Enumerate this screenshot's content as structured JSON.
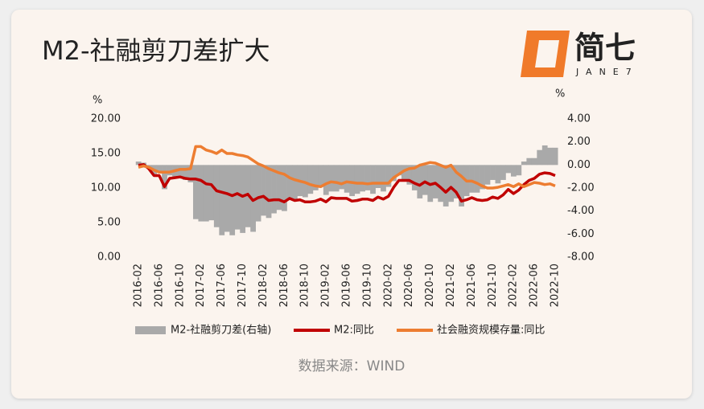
{
  "logo": {
    "name": "简七",
    "sub": "JANE7"
  },
  "chart_data": {
    "type": "combo",
    "title": "M2-社融剪刀差扩大",
    "source": "数据来源：WIND",
    "y_label": "%",
    "y2_label": "%",
    "categories": [
      "2016-02",
      null,
      null,
      null,
      "2016-06",
      null,
      null,
      null,
      "2016-10",
      null,
      null,
      null,
      "2017-02",
      null,
      null,
      null,
      "2017-06",
      null,
      null,
      null,
      "2017-10",
      null,
      null,
      null,
      "2018-02",
      null,
      null,
      null,
      "2018-06",
      null,
      null,
      null,
      "2018-10",
      null,
      null,
      null,
      "2019-02",
      null,
      null,
      null,
      "2019-06",
      null,
      null,
      null,
      "2019-10",
      null,
      null,
      null,
      "2020-02",
      null,
      null,
      null,
      "2020-06",
      null,
      null,
      null,
      "2020-10",
      null,
      null,
      null,
      "2021-02",
      null,
      null,
      null,
      "2021-06",
      null,
      null,
      null,
      "2021-10",
      null,
      null,
      null,
      "2022-02",
      null,
      null,
      null,
      "2022-06",
      null,
      null,
      null,
      "2022-10"
    ],
    "ylim": [
      0,
      20
    ],
    "yticks": [
      {
        "value": 0,
        "label": "0.00"
      },
      {
        "value": 5,
        "label": "5.00"
      },
      {
        "value": 10,
        "label": "10.00"
      },
      {
        "value": 15,
        "label": "15.00"
      },
      {
        "value": 20,
        "label": "20.00"
      }
    ],
    "y2lim": [
      -8,
      4
    ],
    "y2ticks": [
      {
        "value": -8,
        "label": "-8.00"
      },
      {
        "value": -6,
        "label": "-6.00"
      },
      {
        "value": -4,
        "label": "-4.00"
      },
      {
        "value": -2,
        "label": "-2.00"
      },
      {
        "value": 0,
        "label": "0.00"
      },
      {
        "value": 2,
        "label": "2.00"
      },
      {
        "value": 4,
        "label": "4.00"
      }
    ],
    "series": [
      {
        "name": "M2-社融剪刀差(右轴)",
        "type": "area",
        "axis": "y2",
        "color": "#a9a9a9",
        "values": [
          0.3,
          0.2,
          -0.2,
          -0.8,
          -0.5,
          -2.1,
          -0.9,
          -1.0,
          -1.1,
          -1.3,
          -1.5,
          -4.7,
          -4.9,
          -4.9,
          -4.8,
          -5.4,
          -6.1,
          -5.8,
          -6.1,
          -5.6,
          -5.9,
          -5.4,
          -5.8,
          -4.9,
          -4.4,
          -4.6,
          -4.2,
          -3.9,
          -4.0,
          -3.0,
          -3.0,
          -2.7,
          -2.8,
          -2.5,
          -2.2,
          -1.8,
          -2.6,
          -2.3,
          -2.3,
          -2.1,
          -2.4,
          -2.7,
          -2.5,
          -2.3,
          -2.2,
          -2.5,
          -2.0,
          -2.3,
          -1.9,
          -1.4,
          -0.9,
          -1.4,
          -1.7,
          -2.2,
          -2.9,
          -2.6,
          -3.2,
          -2.9,
          -3.2,
          -3.6,
          -3.2,
          -2.9,
          -3.6,
          -2.7,
          -2.4,
          -2.4,
          -2.1,
          -1.7,
          -1.3,
          -1.6,
          -1.3,
          -0.7,
          -1.0,
          -0.9,
          0.3,
          0.6,
          0.6,
          1.3,
          1.7,
          1.5,
          1.5
        ]
      },
      {
        "name": "M2:同比",
        "type": "line",
        "color": "#c00000",
        "values": [
          13.3,
          13.4,
          12.8,
          11.8,
          11.8,
          10.2,
          11.4,
          11.5,
          11.6,
          11.4,
          11.3,
          11.3,
          11.1,
          10.6,
          10.5,
          9.6,
          9.4,
          9.2,
          8.9,
          9.2,
          8.8,
          9.1,
          8.2,
          8.6,
          8.8,
          8.2,
          8.3,
          8.3,
          8.0,
          8.5,
          8.2,
          8.3,
          8.0,
          8.0,
          8.1,
          8.4,
          8.0,
          8.6,
          8.5,
          8.5,
          8.5,
          8.1,
          8.2,
          8.4,
          8.4,
          8.2,
          8.7,
          8.4,
          8.8,
          10.1,
          11.1,
          11.1,
          11.1,
          10.7,
          10.4,
          10.9,
          10.5,
          10.7,
          10.1,
          9.4,
          10.1,
          9.4,
          8.1,
          8.3,
          8.6,
          8.3,
          8.2,
          8.3,
          8.7,
          8.5,
          9.0,
          9.8,
          9.2,
          9.7,
          10.5,
          11.1,
          11.4,
          12.0,
          12.2,
          12.1,
          11.8
        ]
      },
      {
        "name": "社会融资规模存量:同比",
        "type": "line",
        "color": "#ed7d31",
        "values": [
          13.0,
          13.2,
          13.0,
          12.6,
          12.3,
          12.3,
          12.3,
          12.5,
          12.7,
          12.7,
          12.8,
          16.0,
          16.0,
          15.5,
          15.3,
          15.0,
          15.5,
          15.0,
          15.0,
          14.8,
          14.7,
          14.5,
          14.0,
          13.5,
          13.2,
          12.8,
          12.5,
          12.2,
          12.0,
          11.5,
          11.2,
          11.0,
          10.8,
          10.5,
          10.3,
          10.2,
          10.6,
          10.9,
          10.8,
          10.6,
          10.9,
          10.8,
          10.7,
          10.7,
          10.6,
          10.7,
          10.7,
          10.7,
          10.7,
          11.5,
          12.0,
          12.5,
          12.8,
          12.9,
          13.3,
          13.5,
          13.7,
          13.6,
          13.3,
          13.0,
          13.3,
          12.3,
          11.7,
          11.0,
          11.0,
          10.7,
          10.3,
          10.0,
          10.0,
          10.1,
          10.3,
          10.5,
          10.2,
          10.6,
          10.2,
          10.5,
          10.8,
          10.7,
          10.5,
          10.6,
          10.3
        ]
      }
    ]
  }
}
